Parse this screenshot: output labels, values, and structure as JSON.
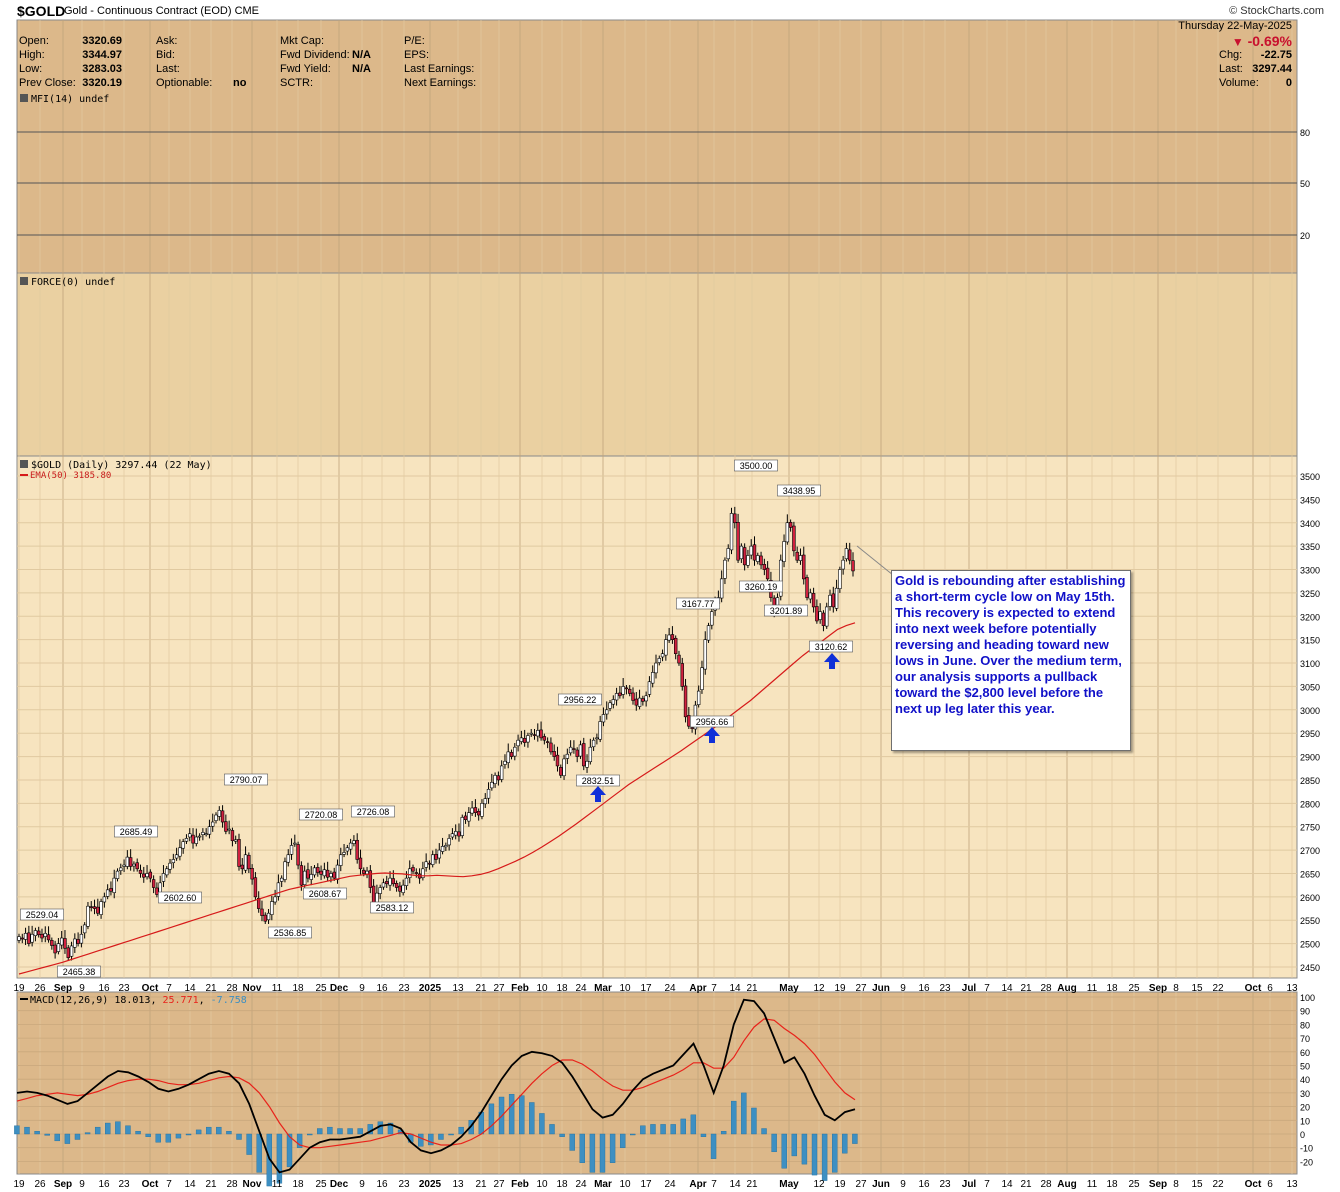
{
  "header": {
    "symbol": "$GOLD",
    "subtitle": "Gold - Continuous Contract (EOD) CME",
    "site": "© StockCharts.com",
    "date": "Thursday  22-May-2025"
  },
  "quote": {
    "open_label": "Open:",
    "open": "3320.69",
    "high_label": "High:",
    "high": "3344.97",
    "low_label": "Low:",
    "low": "3283.03",
    "prev_label": "Prev Close:",
    "prev": "3320.19",
    "ask_label": "Ask:",
    "bid_label": "Bid:",
    "last_label": "Last:",
    "optionable_label": "Optionable:",
    "optionable": "no",
    "mktcap_label": "Mkt Cap:",
    "fwddiv_label": "Fwd Dividend:",
    "fwddiv": "N/A",
    "fwdyield_label": "Fwd Yield:",
    "fwdyield": "N/A",
    "sctr_label": "SCTR:",
    "pe_label": "P/E:",
    "eps_label": "EPS:",
    "lastearn_label": "Last Earnings:",
    "nextearn_label": "Next Earnings:",
    "pct_change": "-0.69%",
    "chg_label": "Chg:",
    "chg": "-22.75",
    "last2_label": "Last:",
    "last": "3297.44",
    "vol_label": "Volume:",
    "volume": "0"
  },
  "colors": {
    "panel_bg": "#dcb88a",
    "price_bg": "#f7e4bf",
    "up_candle": "#ffffff",
    "down_candle": "#d0213f",
    "ema": "#d61a1a",
    "macd_line": "#000000",
    "signal_line": "#e8231b",
    "histogram": "#3d8fc2",
    "arrow": "#1030d8",
    "note_text": "#1010c8"
  },
  "annotation": "Gold is rebounding after establishing a short-term cycle low on May 15th. This recovery is expected to extend into next week before potentially reversing and heading toward new lows in June. Over the medium term, our analysis supports a pullback toward the $2,800 level before the next up leg later this year.",
  "chart_data": [
    {
      "type": "line",
      "title": "MFI(14) undef",
      "ylim": [
        0,
        100
      ],
      "y_ticks": [
        "80",
        "50",
        "20"
      ],
      "series": []
    },
    {
      "type": "line",
      "title": "FORCE(0) undef",
      "series": []
    },
    {
      "type": "candlestick",
      "title": "$GOLD (Daily) 3297.44 (22 May)",
      "legend": [
        "EMA(50) 3185.80"
      ],
      "ylim": [
        2430,
        3520
      ],
      "y_ticks": [
        "3500",
        "3450",
        "3400",
        "3350",
        "3300",
        "3250",
        "3200",
        "3150",
        "3100",
        "3050",
        "3000",
        "2950",
        "2900",
        "2850",
        "2800",
        "2750",
        "2700",
        "2650",
        "2600",
        "2550",
        "2500",
        "2450"
      ],
      "x_ticks": [
        "19",
        "26",
        "Sep",
        "9",
        "16",
        "23",
        "Oct",
        "7",
        "14",
        "21",
        "28",
        "Nov",
        "11",
        "18",
        "25",
        "Dec",
        "9",
        "16",
        "23",
        "2025",
        "13",
        "21",
        "27",
        "Feb",
        "10",
        "18",
        "24",
        "Mar",
        "10",
        "17",
        "24",
        "Apr",
        "7",
        "14",
        "21",
        "May",
        "12",
        "19",
        "27",
        "Jun",
        "9",
        "16",
        "23",
        "Jul",
        "7",
        "14",
        "21",
        "28",
        "Aug",
        "11",
        "18",
        "25",
        "Sep",
        "8",
        "15",
        "22",
        "Oct",
        "6",
        "13"
      ],
      "close_series": [
        2515,
        2510,
        2522,
        2500,
        2520,
        2528,
        2519,
        2512,
        2522,
        2508,
        2496,
        2480,
        2500,
        2512,
        2490,
        2470,
        2495,
        2510,
        2500,
        2520,
        2540,
        2580,
        2578,
        2575,
        2565,
        2590,
        2600,
        2615,
        2612,
        2640,
        2655,
        2662,
        2668,
        2685,
        2665,
        2670,
        2660,
        2650,
        2642,
        2650,
        2640,
        2620,
        2605,
        2630,
        2650,
        2660,
        2672,
        2680,
        2690,
        2705,
        2718,
        2725,
        2735,
        2715,
        2728,
        2730,
        2738,
        2735,
        2750,
        2760,
        2775,
        2785,
        2760,
        2740,
        2745,
        2720,
        2722,
        2665,
        2660,
        2690,
        2660,
        2638,
        2600,
        2575,
        2560,
        2548,
        2565,
        2590,
        2600,
        2630,
        2640,
        2675,
        2690,
        2710,
        2715,
        2668,
        2625,
        2655,
        2640,
        2648,
        2662,
        2652,
        2648,
        2658,
        2642,
        2650,
        2640,
        2668,
        2690,
        2695,
        2705,
        2715,
        2720,
        2680,
        2660,
        2650,
        2655,
        2620,
        2585,
        2608,
        2620,
        2630,
        2628,
        2640,
        2628,
        2620,
        2612,
        2625,
        2640,
        2660,
        2655,
        2650,
        2640,
        2660,
        2675,
        2670,
        2690,
        2680,
        2700,
        2708,
        2710,
        2725,
        2735,
        2740,
        2730,
        2770,
        2765,
        2780,
        2790,
        2780,
        2775,
        2800,
        2810,
        2830,
        2845,
        2860,
        2850,
        2880,
        2890,
        2910,
        2900,
        2920,
        2935,
        2940,
        2930,
        2945,
        2950,
        2945,
        2956,
        2940,
        2935,
        2930,
        2910,
        2900,
        2880,
        2860,
        2895,
        2905,
        2920,
        2915,
        2900,
        2925,
        2880,
        2890,
        2920,
        2935,
        2940,
        2975,
        2990,
        3000,
        3015,
        3022,
        3035,
        3030,
        3050,
        3045,
        3035,
        3020,
        3010,
        3025,
        3018,
        3030,
        3060,
        3080,
        3100,
        3110,
        3120,
        3150,
        3160,
        3150,
        3120,
        3100,
        3050,
        2985,
        2965,
        2960,
        3010,
        3040,
        3090,
        3150,
        3180,
        3210,
        3230,
        3240,
        3280,
        3320,
        3345,
        3420,
        3400,
        3320,
        3350,
        3310,
        3330,
        3350,
        3320,
        3330,
        3310,
        3300,
        3280,
        3240,
        3210,
        3240,
        3320,
        3360,
        3400,
        3390,
        3340,
        3320,
        3330,
        3280,
        3240,
        3250,
        3220,
        3190,
        3210,
        3180,
        3220,
        3245,
        3220,
        3260,
        3300,
        3320,
        3345,
        3320,
        3297
      ],
      "ema50_series": [
        2435,
        2440,
        2445,
        2450,
        2455,
        2460,
        2466,
        2472,
        2478,
        2484,
        2490,
        2496,
        2502,
        2508,
        2514,
        2520,
        2526,
        2532,
        2538,
        2544,
        2550,
        2556,
        2562,
        2568,
        2574,
        2580,
        2586,
        2592,
        2598,
        2604,
        2610,
        2616,
        2620,
        2624,
        2628,
        2632,
        2636,
        2640,
        2644,
        2646,
        2648,
        2650,
        2651,
        2650,
        2649,
        2647,
        2645,
        2645,
        2646,
        2645,
        2644,
        2643,
        2645,
        2648,
        2653,
        2660,
        2668,
        2676,
        2685,
        2695,
        2706,
        2718,
        2730,
        2743,
        2756,
        2770,
        2784,
        2798,
        2812,
        2826,
        2840,
        2852,
        2864,
        2876,
        2888,
        2900,
        2912,
        2925,
        2938,
        2951,
        2964,
        2978,
        2992,
        3006,
        3020,
        3036,
        3052,
        3068,
        3084,
        3100,
        3116,
        3130,
        3144,
        3158,
        3172,
        3180,
        3186
      ],
      "labels": [
        "3500.00",
        "3438.95",
        "3167.77",
        "3260.19",
        "3201.89",
        "3120.62",
        "2956.22",
        "2956.66",
        "2832.51",
        "2790.07",
        "2720.08",
        "2726.08",
        "2685.49",
        "2602.60",
        "2608.67",
        "2583.12",
        "2536.85",
        "2529.04",
        "2465.38"
      ]
    },
    {
      "type": "bar",
      "title": "MACD(12,26,9)",
      "legend": [
        "18.013",
        "25.771",
        "-7.758"
      ],
      "ylim": [
        -25,
        102
      ],
      "y_ticks": [
        "100",
        "90",
        "80",
        "70",
        "60",
        "50",
        "40",
        "30",
        "20",
        "10",
        "0",
        "-10",
        "-20"
      ],
      "macd_series": [
        30,
        31,
        30,
        28,
        25,
        22,
        24,
        30,
        36,
        42,
        46,
        45,
        42,
        38,
        33,
        31,
        33,
        36,
        40,
        44,
        46,
        44,
        37,
        22,
        2,
        -18,
        -28,
        -26,
        -18,
        -10,
        -6,
        -4,
        -4,
        -3,
        -2,
        2,
        6,
        7,
        4,
        -6,
        -12,
        -14,
        -12,
        -8,
        -2,
        6,
        16,
        28,
        40,
        50,
        57,
        60,
        59,
        57,
        52,
        42,
        30,
        18,
        12,
        14,
        22,
        32,
        40,
        44,
        47,
        50,
        58,
        66,
        50,
        30,
        50,
        80,
        98,
        97,
        88,
        70,
        52,
        56,
        44,
        28,
        14,
        10,
        16,
        18
      ],
      "signal_series": [
        24,
        26,
        28,
        29,
        30,
        29,
        28,
        29,
        31,
        34,
        37,
        39,
        40,
        40,
        39,
        37,
        36,
        36,
        37,
        39,
        41,
        42,
        41,
        37,
        30,
        20,
        8,
        -2,
        -8,
        -10,
        -10,
        -9,
        -8,
        -7,
        -6,
        -5,
        -3,
        -1,
        1,
        0,
        -3,
        -6,
        -8,
        -8,
        -7,
        -4,
        0,
        6,
        13,
        21,
        29,
        37,
        44,
        50,
        54,
        54,
        51,
        46,
        40,
        35,
        32,
        32,
        34,
        37,
        40,
        43,
        47,
        52,
        52,
        48,
        48,
        56,
        68,
        78,
        84,
        83,
        77,
        72,
        66,
        58,
        48,
        38,
        30,
        25
      ]
    }
  ]
}
